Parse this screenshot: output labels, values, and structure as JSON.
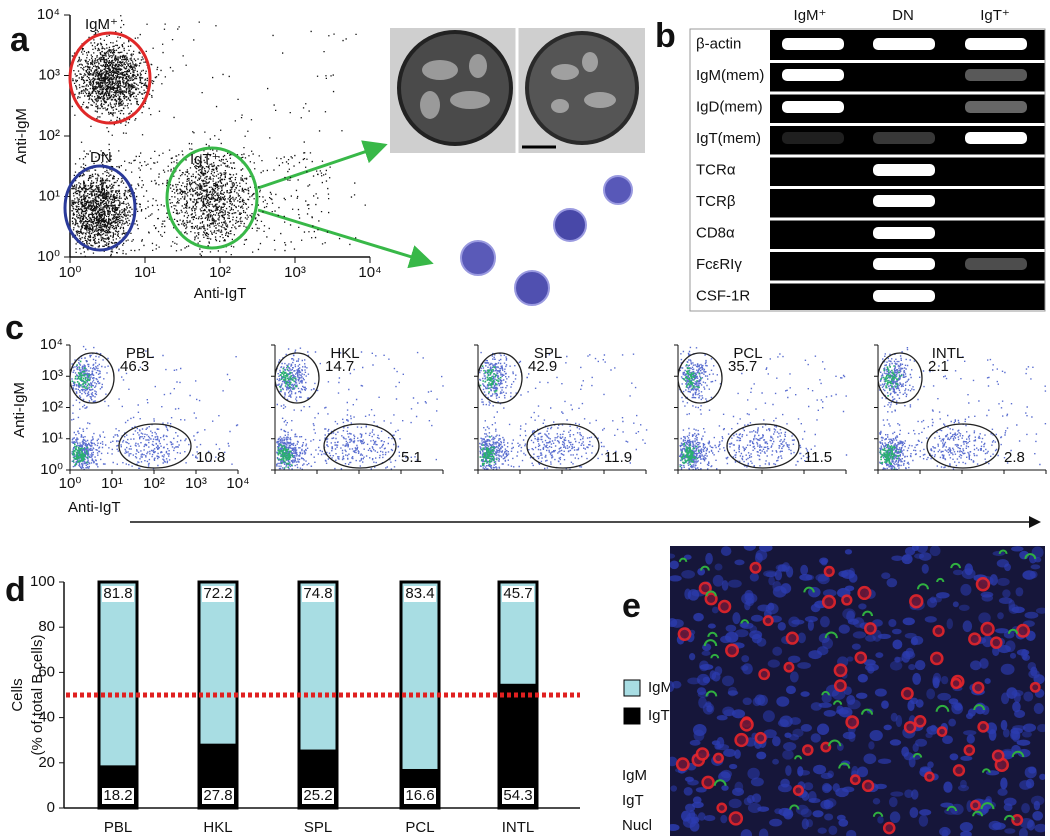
{
  "panel_labels": [
    "a",
    "b",
    "c",
    "d",
    "e"
  ],
  "panel_a": {
    "gates": [
      {
        "label": "IgM⁺",
        "color": "#e02828"
      },
      {
        "label": "DN",
        "color": "#2a3a9a"
      },
      {
        "label": "IgT⁺",
        "color": "#38b848"
      }
    ],
    "x_label": "Anti-IgT",
    "y_label": "Anti-IgM",
    "ticks": [
      {
        "value": 1,
        "label": "10⁰"
      },
      {
        "value": 10,
        "label": "10¹"
      },
      {
        "value": 100,
        "label": "10²"
      },
      {
        "value": 1000,
        "label": "10³"
      },
      {
        "value": 10000,
        "label": "10⁴"
      }
    ]
  },
  "panel_b": {
    "columns": [
      "IgM⁺",
      "DN",
      "IgT⁺"
    ],
    "rows": [
      "β-actin",
      "IgM(mem)",
      "IgD(mem)",
      "IgT(mem)",
      "TCRα",
      "TCRβ",
      "CD8α",
      "FcεRIγ",
      "CSF-1R"
    ]
  },
  "panel_c": {
    "x_label": "Anti-IgT",
    "y_label": "Anti-IgM",
    "ticks": [
      {
        "value": 1,
        "label": "10⁰"
      },
      {
        "value": 10,
        "label": "10¹"
      },
      {
        "value": 100,
        "label": "10²"
      },
      {
        "value": 1000,
        "label": "10³"
      },
      {
        "value": 10000,
        "label": "10⁴"
      }
    ],
    "plots": [
      {
        "title": "PBL",
        "igm": 46.3,
        "igt": 10.8
      },
      {
        "title": "HKL",
        "igm": 14.7,
        "igt": 5.1
      },
      {
        "title": "SPL",
        "igm": 42.9,
        "igt": 11.9
      },
      {
        "title": "PCL",
        "igm": 35.7,
        "igt": 11.5
      },
      {
        "title": "INTL",
        "igm": 2.1,
        "igt": 2.8
      }
    ]
  },
  "chart_data": {
    "type": "stacked_bar",
    "ylabel": [
      "Cells",
      "(% of total B cells)"
    ],
    "categories": [
      "PBL",
      "HKL",
      "SPL",
      "PCL",
      "INTL"
    ],
    "series": [
      {
        "name": "IgM⁺ cells",
        "color": "#a8dde3",
        "values": [
          81.8,
          72.2,
          74.8,
          83.4,
          45.7
        ]
      },
      {
        "name": "IgT⁺ cells",
        "color": "#000000",
        "values": [
          18.2,
          27.8,
          25.2,
          16.6,
          54.3
        ]
      }
    ],
    "ylim": [
      0,
      100
    ],
    "yticks": [
      0,
      20,
      40,
      60,
      80,
      100
    ],
    "reference_line": {
      "value": 50,
      "color": "#e02020"
    }
  },
  "panel_e": {
    "legend": [
      {
        "label": "IgM",
        "color": "#e8252a"
      },
      {
        "label": "IgT",
        "color": "#30b040"
      },
      {
        "label": "Nucl",
        "color": "#2a3aa8"
      }
    ]
  }
}
